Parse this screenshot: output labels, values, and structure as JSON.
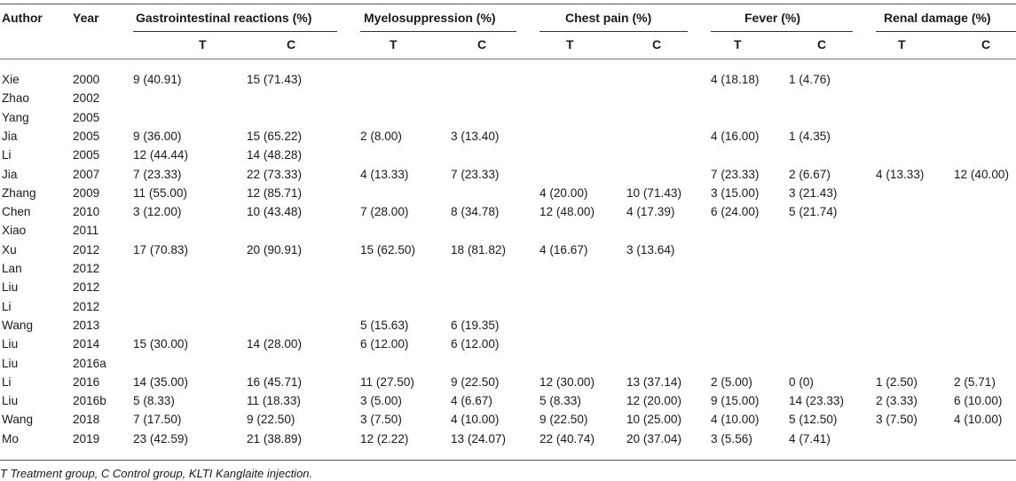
{
  "headers": {
    "author": "Author",
    "year": "Year",
    "groups": [
      "Gastrointestinal reactions (%)",
      "Myelosuppression (%)",
      "Chest pain (%)",
      "Fever (%)",
      "Renal damage (%)"
    ],
    "t": "T",
    "c": "C"
  },
  "rows": [
    [
      "Xie",
      "2000",
      "9 (40.91)",
      "15 (71.43)",
      "",
      "",
      "",
      "",
      "4 (18.18)",
      "1 (4.76)",
      "",
      ""
    ],
    [
      "Zhao",
      "2002",
      "",
      "",
      "",
      "",
      "",
      "",
      "",
      "",
      "",
      ""
    ],
    [
      "Yang",
      "2005",
      "",
      "",
      "",
      "",
      "",
      "",
      "",
      "",
      "",
      ""
    ],
    [
      "Jia",
      "2005",
      "9 (36.00)",
      "15 (65.22)",
      "2 (8.00)",
      "3 (13.40)",
      "",
      "",
      "4 (16.00)",
      "1 (4.35)",
      "",
      ""
    ],
    [
      "Li",
      "2005",
      "12 (44.44)",
      "14 (48.28)",
      "",
      "",
      "",
      "",
      "",
      "",
      "",
      ""
    ],
    [
      "Jia",
      "2007",
      "7 (23.33)",
      "22 (73.33)",
      "4 (13.33)",
      "7 (23.33)",
      "",
      "",
      "7 (23.33)",
      "2 (6.67)",
      "4 (13.33)",
      "12 (40.00)"
    ],
    [
      "Zhang",
      "2009",
      "11 (55.00)",
      "12 (85.71)",
      "",
      "",
      "4 (20.00)",
      "10 (71.43)",
      "3 (15.00)",
      "3 (21.43)",
      "",
      ""
    ],
    [
      "Chen",
      "2010",
      "3 (12.00)",
      "10 (43.48)",
      "7 (28.00)",
      "8 (34.78)",
      "12 (48.00)",
      "4 (17.39)",
      "6 (24.00)",
      "5 (21.74)",
      "",
      ""
    ],
    [
      "Xiao",
      "2011",
      "",
      "",
      "",
      "",
      "",
      "",
      "",
      "",
      "",
      ""
    ],
    [
      "Xu",
      "2012",
      "17 (70.83)",
      "20 (90.91)",
      "15 (62.50)",
      "18 (81.82)",
      "4 (16.67)",
      "3 (13.64)",
      "",
      "",
      "",
      ""
    ],
    [
      "Lan",
      "2012",
      "",
      "",
      "",
      "",
      "",
      "",
      "",
      "",
      "",
      ""
    ],
    [
      "Liu",
      "2012",
      "",
      "",
      "",
      "",
      "",
      "",
      "",
      "",
      "",
      ""
    ],
    [
      "Li",
      "2012",
      "",
      "",
      "",
      "",
      "",
      "",
      "",
      "",
      "",
      ""
    ],
    [
      "Wang",
      "2013",
      "",
      "",
      "5 (15.63)",
      "6 (19.35)",
      "",
      "",
      "",
      "",
      "",
      ""
    ],
    [
      "Liu",
      "2014",
      "15 (30.00)",
      "14 (28.00)",
      "6 (12.00)",
      "6 (12.00)",
      "",
      "",
      "",
      "",
      "",
      ""
    ],
    [
      "Liu",
      "2016a",
      "",
      "",
      "",
      "",
      "",
      "",
      "",
      "",
      "",
      ""
    ],
    [
      "Li",
      "2016",
      "14 (35.00)",
      "16 (45.71)",
      "11 (27.50)",
      "9 (22.50)",
      "12 (30.00)",
      "13 (37.14)",
      "2 (5.00)",
      "0 (0)",
      "1 (2.50)",
      "2 (5.71)"
    ],
    [
      "Liu",
      "2016b",
      "5 (8.33)",
      "11 (18.33)",
      "3 (5.00)",
      "4 (6.67)",
      "5 (8.33)",
      "12 (20.00)",
      "9 (15.00)",
      "14 (23.33)",
      "2 (3.33)",
      "6 (10.00)"
    ],
    [
      "Wang",
      "2018",
      "7 (17.50)",
      "9 (22.50)",
      "3 (7.50)",
      "4 (10.00)",
      "9 (22.50)",
      "10 (25.00)",
      "4 (10.00)",
      "5 (12.50)",
      "3 (7.50)",
      "4 (10.00)"
    ],
    [
      "Mo",
      "2019",
      "23 (42.59)",
      "21 (38.89)",
      "12 (2.22)",
      "13 (24.07)",
      "22 (40.74)",
      "20 (37.04)",
      "3 (5.56)",
      "4 (7.41)",
      "",
      ""
    ]
  ],
  "footnote": "T Treatment group, C Control group, KLTI Kanglaite injection."
}
